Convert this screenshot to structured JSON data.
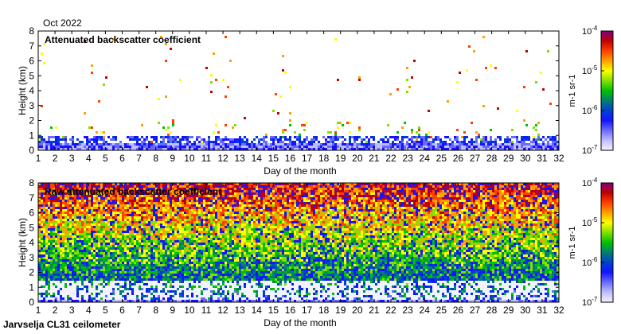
{
  "header": {
    "date_label": "Oct 2022"
  },
  "footer": {
    "station_label": "Jarvselja CL31 ceilometer"
  },
  "chart_data": [
    {
      "type": "heatmap",
      "title": "Attenuated backscatter coefficient",
      "xlabel": "Day of the month",
      "ylabel": "Height (km)",
      "xlim": [
        1,
        32
      ],
      "ylim": [
        0,
        8
      ],
      "xticks": [
        "1",
        "2",
        "3",
        "4",
        "5",
        "6",
        "7",
        "8",
        "9",
        "10",
        "11",
        "12",
        "13",
        "14",
        "15",
        "16",
        "17",
        "18",
        "19",
        "20",
        "21",
        "22",
        "23",
        "24",
        "25",
        "26",
        "27",
        "28",
        "29",
        "30",
        "31",
        "32"
      ],
      "yticks": [
        "0",
        "1",
        "2",
        "3",
        "4",
        "5",
        "6",
        "7",
        "8"
      ],
      "colorbar": {
        "scale": "log",
        "range": [
          1e-07,
          0.0001
        ],
        "tick_labels": [
          "10-7",
          "10-6",
          "10-5",
          "10-4"
        ],
        "unit_label": "m-1 sr-1",
        "colors": [
          "#f3f3ff",
          "#bebeff",
          "#6a6aff",
          "#1414ff",
          "#0040d0",
          "#008070",
          "#00c000",
          "#80e000",
          "#ffff00",
          "#ffa000",
          "#ff4000",
          "#c00000",
          "#800080"
        ]
      }
    },
    {
      "type": "heatmap",
      "title": "Raw attenuated backscatter coefficient",
      "xlabel": "Day of the month",
      "ylabel": "Height (km)",
      "xlim": [
        1,
        32
      ],
      "ylim": [
        0,
        8
      ],
      "xticks": [
        "1",
        "2",
        "3",
        "4",
        "5",
        "6",
        "7",
        "8",
        "9",
        "10",
        "11",
        "12",
        "13",
        "14",
        "15",
        "16",
        "17",
        "18",
        "19",
        "20",
        "21",
        "22",
        "23",
        "24",
        "25",
        "26",
        "27",
        "28",
        "29",
        "30",
        "31",
        "32"
      ],
      "yticks": [
        "0",
        "1",
        "2",
        "3",
        "4",
        "5",
        "6",
        "7",
        "8"
      ],
      "colorbar": {
        "scale": "log",
        "range": [
          1e-07,
          0.0001
        ],
        "tick_labels": [
          "10-7",
          "10-6",
          "10-5",
          "10-4"
        ],
        "unit_label": "m-1 sr-1",
        "colors": [
          "#f3f3ff",
          "#bebeff",
          "#6a6aff",
          "#1414ff",
          "#0040d0",
          "#008070",
          "#00c000",
          "#80e000",
          "#ffff00",
          "#ffa000",
          "#ff4000",
          "#c00000",
          "#800080"
        ]
      }
    }
  ]
}
